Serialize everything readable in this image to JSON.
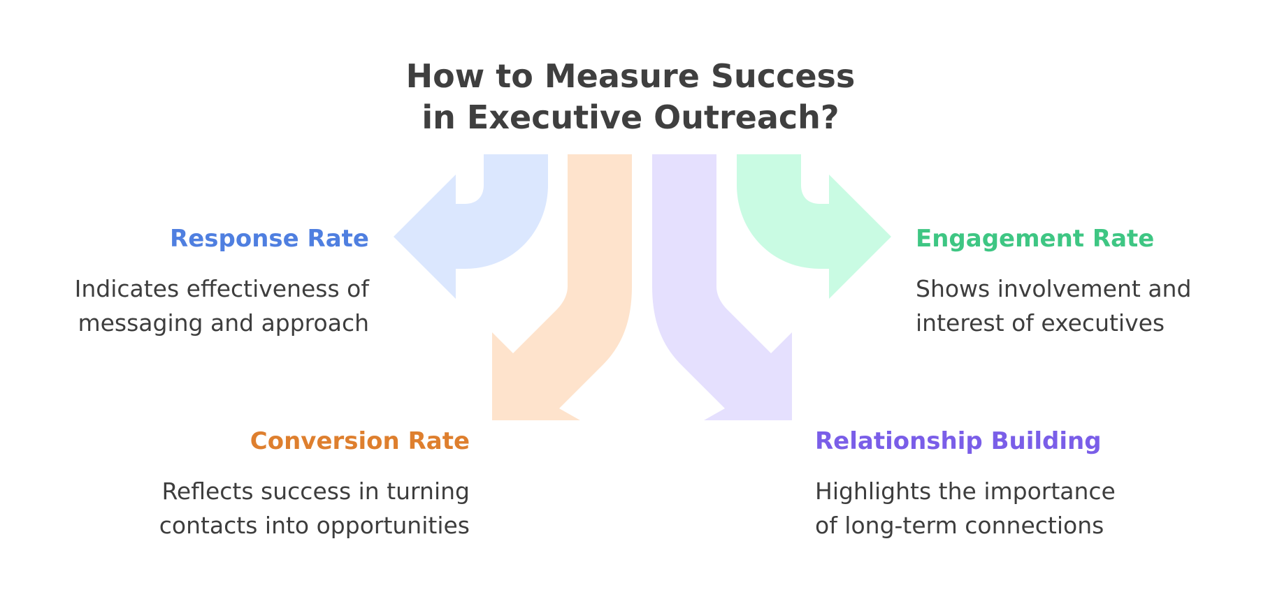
{
  "title": {
    "line1": "How to Measure Success",
    "line2": "in Executive Outreach?"
  },
  "colors": {
    "response": "#4f7fe0",
    "conversion": "#de7f2e",
    "relationship": "#7a5ee8",
    "engagement": "#3ec683",
    "arrow_blue": "#dbe7fe",
    "arrow_orange": "#fee3cc",
    "arrow_purple": "#e5e0fe",
    "arrow_green": "#c9fbe3",
    "text": "#3d3d3d"
  },
  "items": {
    "response": {
      "heading": "Response Rate",
      "desc_line1": "Indicates effectiveness of",
      "desc_line2": "messaging and approach"
    },
    "conversion": {
      "heading": "Conversion Rate",
      "desc_line1": "Reflects success in turning",
      "desc_line2": "contacts into opportunities"
    },
    "relationship": {
      "heading": "Relationship Building",
      "desc_line1": "Highlights the importance",
      "desc_line2": "of long-term connections"
    },
    "engagement": {
      "heading": "Engagement Rate",
      "desc_line1": "Shows involvement and",
      "desc_line2": "interest of executives"
    }
  }
}
